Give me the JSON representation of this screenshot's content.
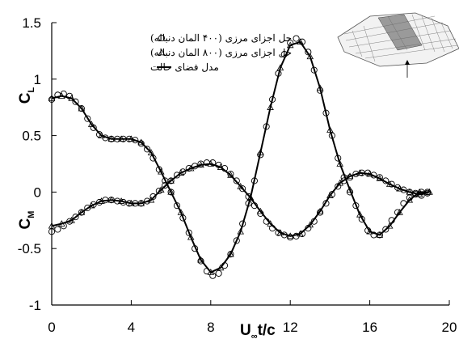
{
  "chart_data": {
    "type": "line",
    "xlim": [
      0,
      20
    ],
    "ylim": [
      -1,
      1.5
    ],
    "x_ticks": [
      "0",
      "4",
      "8",
      "12",
      "16",
      "20"
    ],
    "y_ticks": [
      "1.5",
      "1",
      "0.5",
      "0",
      "-0.5",
      "-1"
    ],
    "x_ticks_values": [
      0,
      4,
      8,
      12,
      16,
      20
    ],
    "y_ticks_values": [
      1.5,
      1,
      0.5,
      0,
      -0.5,
      -1
    ],
    "xlabel": {
      "main": "U",
      "sub": "∞",
      "rest": "t/c"
    },
    "ylabel_top": {
      "main": "C",
      "sub": "L"
    },
    "ylabel_bottom": {
      "main": "C",
      "sub": "M"
    },
    "legend": [
      {
        "text": "حل اجزای مرزی (۴۰۰ المان دنباله)",
        "marker": "circle"
      },
      {
        "text": "حل اجزای مرزی (۸۰۰ المان دنباله)",
        "marker": "triangle"
      },
      {
        "text": "مدل فضای حالت",
        "marker": "line"
      }
    ],
    "legend_position": "top-right",
    "grid": false,
    "series": [
      {
        "marker": "line",
        "points": [
          [
            0,
            0.83
          ],
          [
            0.5,
            0.85
          ],
          [
            1,
            0.83
          ],
          [
            1.5,
            0.74
          ],
          [
            2,
            0.6
          ],
          [
            2.5,
            0.5
          ],
          [
            3,
            0.47
          ],
          [
            3.5,
            0.47
          ],
          [
            4,
            0.47
          ],
          [
            4.5,
            0.44
          ],
          [
            5,
            0.35
          ],
          [
            5.5,
            0.18
          ],
          [
            6,
            0.0
          ],
          [
            6.5,
            -0.18
          ],
          [
            7,
            -0.4
          ],
          [
            7.5,
            -0.6
          ],
          [
            8,
            -0.71
          ],
          [
            8.5,
            -0.67
          ],
          [
            9,
            -0.55
          ],
          [
            9.5,
            -0.35
          ],
          [
            10,
            -0.05
          ],
          [
            10.5,
            0.35
          ],
          [
            11,
            0.75
          ],
          [
            11.5,
            1.1
          ],
          [
            12,
            1.3
          ],
          [
            12.5,
            1.33
          ],
          [
            13,
            1.2
          ],
          [
            13.5,
            0.92
          ],
          [
            14,
            0.55
          ],
          [
            14.5,
            0.25
          ],
          [
            15,
            0.02
          ],
          [
            15.5,
            -0.2
          ],
          [
            16,
            -0.35
          ],
          [
            16.5,
            -0.38
          ],
          [
            17,
            -0.3
          ],
          [
            17.5,
            -0.18
          ],
          [
            18,
            -0.07
          ],
          [
            18.5,
            0.0
          ],
          [
            19,
            0.0
          ]
        ]
      },
      {
        "marker": "line",
        "points": [
          [
            0,
            -0.3
          ],
          [
            0.5,
            -0.28
          ],
          [
            1,
            -0.25
          ],
          [
            1.5,
            -0.18
          ],
          [
            2,
            -0.12
          ],
          [
            2.5,
            -0.08
          ],
          [
            3,
            -0.07
          ],
          [
            3.5,
            -0.08
          ],
          [
            4,
            -0.1
          ],
          [
            4.5,
            -0.1
          ],
          [
            5,
            -0.07
          ],
          [
            5.5,
            0.02
          ],
          [
            6,
            0.1
          ],
          [
            6.5,
            0.17
          ],
          [
            7,
            0.21
          ],
          [
            7.5,
            0.24
          ],
          [
            8,
            0.25
          ],
          [
            8.5,
            0.22
          ],
          [
            9,
            0.15
          ],
          [
            9.5,
            0.05
          ],
          [
            10,
            -0.05
          ],
          [
            10.5,
            -0.17
          ],
          [
            11,
            -0.28
          ],
          [
            11.5,
            -0.36
          ],
          [
            12,
            -0.39
          ],
          [
            12.5,
            -0.37
          ],
          [
            13,
            -0.29
          ],
          [
            13.5,
            -0.17
          ],
          [
            14,
            -0.03
          ],
          [
            14.5,
            0.08
          ],
          [
            15,
            0.14
          ],
          [
            15.5,
            0.17
          ],
          [
            16,
            0.16
          ],
          [
            16.5,
            0.12
          ],
          [
            17,
            0.07
          ],
          [
            17.5,
            0.03
          ],
          [
            18,
            0.0
          ],
          [
            18.5,
            -0.02
          ],
          [
            19,
            0.0
          ]
        ]
      },
      {
        "marker": "circle",
        "points": [
          [
            0,
            0.82
          ],
          [
            0.3,
            0.86
          ],
          [
            0.6,
            0.87
          ],
          [
            0.9,
            0.85
          ],
          [
            1.2,
            0.8
          ],
          [
            1.5,
            0.74
          ],
          [
            1.8,
            0.65
          ],
          [
            2.1,
            0.57
          ],
          [
            2.4,
            0.51
          ],
          [
            2.7,
            0.48
          ],
          [
            3,
            0.47
          ],
          [
            3.3,
            0.47
          ],
          [
            3.6,
            0.47
          ],
          [
            3.9,
            0.47
          ],
          [
            4.2,
            0.46
          ],
          [
            4.5,
            0.43
          ],
          [
            4.8,
            0.38
          ],
          [
            5.1,
            0.3
          ],
          [
            5.4,
            0.2
          ],
          [
            5.7,
            0.1
          ],
          [
            6,
            0.0
          ],
          [
            6.3,
            -0.12
          ],
          [
            6.6,
            -0.23
          ],
          [
            6.9,
            -0.36
          ],
          [
            7.2,
            -0.5
          ],
          [
            7.5,
            -0.61
          ],
          [
            7.8,
            -0.7
          ],
          [
            8.1,
            -0.74
          ],
          [
            8.4,
            -0.72
          ],
          [
            8.7,
            -0.65
          ],
          [
            9,
            -0.55
          ],
          [
            9.3,
            -0.43
          ],
          [
            9.6,
            -0.28
          ],
          [
            9.9,
            -0.1
          ],
          [
            10.2,
            0.1
          ],
          [
            10.5,
            0.33
          ],
          [
            10.8,
            0.58
          ],
          [
            11.1,
            0.82
          ],
          [
            11.4,
            1.05
          ],
          [
            11.7,
            1.22
          ],
          [
            12,
            1.32
          ],
          [
            12.3,
            1.36
          ],
          [
            12.6,
            1.33
          ],
          [
            12.9,
            1.24
          ],
          [
            13.2,
            1.08
          ],
          [
            13.5,
            0.9
          ],
          [
            13.8,
            0.7
          ],
          [
            14.1,
            0.5
          ],
          [
            14.4,
            0.3
          ],
          [
            14.7,
            0.13
          ],
          [
            15,
            0.0
          ],
          [
            15.3,
            -0.12
          ],
          [
            15.6,
            -0.24
          ],
          [
            15.9,
            -0.34
          ],
          [
            16.2,
            -0.38
          ],
          [
            16.5,
            -0.38
          ],
          [
            16.8,
            -0.33
          ],
          [
            17.1,
            -0.25
          ],
          [
            17.4,
            -0.18
          ],
          [
            17.7,
            -0.1
          ],
          [
            18,
            -0.05
          ],
          [
            18.3,
            -0.02
          ],
          [
            18.6,
            0.0
          ],
          [
            18.9,
            0.0
          ]
        ]
      },
      {
        "marker": "circle",
        "points": [
          [
            0,
            -0.35
          ],
          [
            0.3,
            -0.33
          ],
          [
            0.6,
            -0.3
          ],
          [
            0.9,
            -0.26
          ],
          [
            1.2,
            -0.22
          ],
          [
            1.5,
            -0.18
          ],
          [
            1.8,
            -0.14
          ],
          [
            2.1,
            -0.11
          ],
          [
            2.4,
            -0.09
          ],
          [
            2.7,
            -0.07
          ],
          [
            3,
            -0.07
          ],
          [
            3.3,
            -0.08
          ],
          [
            3.6,
            -0.09
          ],
          [
            3.9,
            -0.1
          ],
          [
            4.2,
            -0.1
          ],
          [
            4.5,
            -0.1
          ],
          [
            4.8,
            -0.08
          ],
          [
            5.1,
            -0.04
          ],
          [
            5.4,
            0.01
          ],
          [
            5.7,
            0.06
          ],
          [
            6,
            0.1
          ],
          [
            6.3,
            0.15
          ],
          [
            6.6,
            0.18
          ],
          [
            6.9,
            0.21
          ],
          [
            7.2,
            0.23
          ],
          [
            7.5,
            0.25
          ],
          [
            7.8,
            0.26
          ],
          [
            8.1,
            0.26
          ],
          [
            8.4,
            0.24
          ],
          [
            8.7,
            0.21
          ],
          [
            9,
            0.16
          ],
          [
            9.3,
            0.1
          ],
          [
            9.6,
            0.03
          ],
          [
            9.9,
            -0.04
          ],
          [
            10.2,
            -0.12
          ],
          [
            10.5,
            -0.19
          ],
          [
            10.8,
            -0.26
          ],
          [
            11.1,
            -0.32
          ],
          [
            11.4,
            -0.36
          ],
          [
            11.7,
            -0.38
          ],
          [
            12,
            -0.4
          ],
          [
            12.3,
            -0.39
          ],
          [
            12.6,
            -0.37
          ],
          [
            12.9,
            -0.32
          ],
          [
            13.2,
            -0.26
          ],
          [
            13.5,
            -0.18
          ],
          [
            13.8,
            -0.1
          ],
          [
            14.1,
            -0.02
          ],
          [
            14.4,
            0.05
          ],
          [
            14.7,
            0.1
          ],
          [
            15,
            0.13
          ],
          [
            15.3,
            0.16
          ],
          [
            15.6,
            0.17
          ],
          [
            15.9,
            0.17
          ],
          [
            16.2,
            0.15
          ],
          [
            16.5,
            0.13
          ],
          [
            16.8,
            0.1
          ],
          [
            17.1,
            0.07
          ],
          [
            17.4,
            0.04
          ],
          [
            17.7,
            0.02
          ],
          [
            18,
            0.0
          ],
          [
            18.3,
            -0.01
          ],
          [
            18.6,
            -0.03
          ],
          [
            18.9,
            -0.01
          ]
        ]
      },
      {
        "marker": "triangle",
        "points": [
          [
            0,
            0.83
          ],
          [
            0.5,
            0.85
          ],
          [
            1,
            0.83
          ],
          [
            1.5,
            0.74
          ],
          [
            2,
            0.6
          ],
          [
            2.5,
            0.5
          ],
          [
            3,
            0.47
          ],
          [
            3.5,
            0.47
          ],
          [
            4,
            0.47
          ],
          [
            4.5,
            0.44
          ],
          [
            5,
            0.35
          ],
          [
            5.5,
            0.18
          ],
          [
            6,
            0.0
          ],
          [
            6.5,
            -0.18
          ],
          [
            7,
            -0.4
          ],
          [
            7.5,
            -0.6
          ],
          [
            8,
            -0.71
          ],
          [
            8.5,
            -0.67
          ],
          [
            9,
            -0.55
          ],
          [
            9.5,
            -0.35
          ],
          [
            10,
            -0.05
          ],
          [
            10.5,
            0.35
          ],
          [
            11,
            0.75
          ],
          [
            11.5,
            1.1
          ],
          [
            12,
            1.3
          ],
          [
            12.5,
            1.33
          ],
          [
            13,
            1.2
          ],
          [
            13.5,
            0.92
          ],
          [
            14,
            0.55
          ],
          [
            14.5,
            0.25
          ],
          [
            15,
            0.02
          ],
          [
            15.5,
            -0.2
          ],
          [
            16,
            -0.35
          ],
          [
            16.5,
            -0.38
          ],
          [
            17,
            -0.3
          ],
          [
            17.5,
            -0.18
          ],
          [
            18,
            -0.07
          ],
          [
            18.5,
            0.0
          ],
          [
            19,
            0.0
          ]
        ]
      },
      {
        "marker": "triangle",
        "points": [
          [
            0,
            -0.3
          ],
          [
            0.5,
            -0.28
          ],
          [
            1,
            -0.25
          ],
          [
            1.5,
            -0.18
          ],
          [
            2,
            -0.12
          ],
          [
            2.5,
            -0.08
          ],
          [
            3,
            -0.07
          ],
          [
            3.5,
            -0.08
          ],
          [
            4,
            -0.1
          ],
          [
            4.5,
            -0.1
          ],
          [
            5,
            -0.07
          ],
          [
            5.5,
            0.02
          ],
          [
            6,
            0.1
          ],
          [
            6.5,
            0.17
          ],
          [
            7,
            0.21
          ],
          [
            7.5,
            0.24
          ],
          [
            8,
            0.25
          ],
          [
            8.5,
            0.22
          ],
          [
            9,
            0.15
          ],
          [
            9.5,
            0.05
          ],
          [
            10,
            -0.05
          ],
          [
            10.5,
            -0.17
          ],
          [
            11,
            -0.28
          ],
          [
            11.5,
            -0.36
          ],
          [
            12,
            -0.39
          ],
          [
            12.5,
            -0.37
          ],
          [
            13,
            -0.29
          ],
          [
            13.5,
            -0.17
          ],
          [
            14,
            -0.03
          ],
          [
            14.5,
            0.08
          ],
          [
            15,
            0.14
          ],
          [
            15.5,
            0.17
          ],
          [
            16,
            0.16
          ],
          [
            16.5,
            0.12
          ],
          [
            17,
            0.07
          ],
          [
            17.5,
            0.03
          ],
          [
            18,
            0.0
          ],
          [
            18.5,
            -0.02
          ],
          [
            19,
            0.0
          ]
        ]
      }
    ]
  }
}
